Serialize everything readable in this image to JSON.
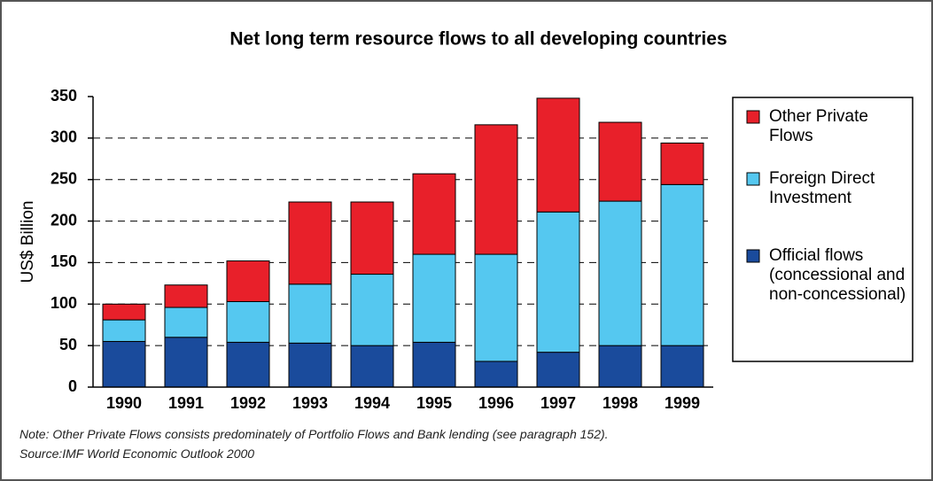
{
  "chart_data": {
    "type": "stacked_bar",
    "title": "Net long term resource flows to all developing countries",
    "y_label": "US$ Billion",
    "categories": [
      "1990",
      "1991",
      "1992",
      "1993",
      "1994",
      "1995",
      "1996",
      "1997",
      "1998",
      "1999"
    ],
    "series": [
      {
        "name": "Other Private Flows",
        "color": "#e8202a",
        "values": [
          19,
          27,
          49,
          99,
          87,
          97,
          156,
          137,
          95,
          50
        ]
      },
      {
        "name": "Foreign Direct Investment",
        "color": "#55c8f0",
        "values": [
          26,
          36,
          49,
          71,
          86,
          106,
          129,
          169,
          174,
          194
        ]
      },
      {
        "name": "Official flows (concessional and non-concessional)",
        "color": "#1a4b9c",
        "values": [
          55,
          60,
          54,
          53,
          50,
          54,
          31,
          42,
          50,
          50
        ]
      }
    ],
    "ylim": [
      0,
      350
    ],
    "yticks": [
      0,
      50,
      100,
      150,
      200,
      250,
      300,
      350
    ],
    "grid": true,
    "notes": [
      "Note: Other Private Flows consists predominately of Portfolio Flows and Bank lending (see paragraph 152).",
      "Source:IMF World Economic Outlook 2000"
    ]
  }
}
